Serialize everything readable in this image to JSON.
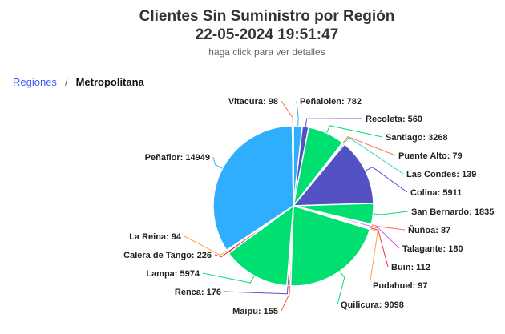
{
  "chart_data": {
    "type": "pie",
    "title": "Clientes Sin Suministro por Región",
    "subtitle_datetime": "22-05-2024 19:51:47",
    "hint": "haga click para ver detalles",
    "slices": [
      {
        "label": "Peñalolen",
        "value": 782,
        "color": "#2eaefc"
      },
      {
        "label": "Recoleta",
        "value": 560,
        "color": "#5451c4"
      },
      {
        "label": "Santiago",
        "value": 3268,
        "color": "#00e070"
      },
      {
        "label": "Puente Alto",
        "value": 79,
        "color": "#ff7043"
      },
      {
        "label": "Las Condes",
        "value": 139,
        "color": "#26d9c4"
      },
      {
        "label": "Colina",
        "value": 5911,
        "color": "#5451c4"
      },
      {
        "label": "San Bernardo",
        "value": 1835,
        "color": "#00e070"
      },
      {
        "label": "Ñuñoa",
        "value": 87,
        "color": "#ff7043"
      },
      {
        "label": "Talagante",
        "value": 180,
        "color": "#c35cf2"
      },
      {
        "label": "Buin",
        "value": 112,
        "color": "#f0303a"
      },
      {
        "label": "Pudahuel",
        "value": 97,
        "color": "#ffa24d"
      },
      {
        "label": "Quilicura",
        "value": 9098,
        "color": "#00e070"
      },
      {
        "label": "Maipu",
        "value": 155,
        "color": "#ff5a3a"
      },
      {
        "label": "Renca",
        "value": 176,
        "color": "#5451c4"
      },
      {
        "label": "Lampa",
        "value": 5974,
        "color": "#00e070"
      },
      {
        "label": "Calera de Tango",
        "value": 226,
        "color": "#f0303a"
      },
      {
        "label": "La Reina",
        "value": 94,
        "color": "#ffa24d"
      },
      {
        "label": "Peñaflor",
        "value": 14949,
        "color": "#2eaefc"
      },
      {
        "label": "Vitacura",
        "value": 98,
        "color": "#ff7043"
      }
    ]
  },
  "breadcrumb": {
    "root": "Regiones",
    "separator": "/",
    "current": "Metropolitana"
  }
}
